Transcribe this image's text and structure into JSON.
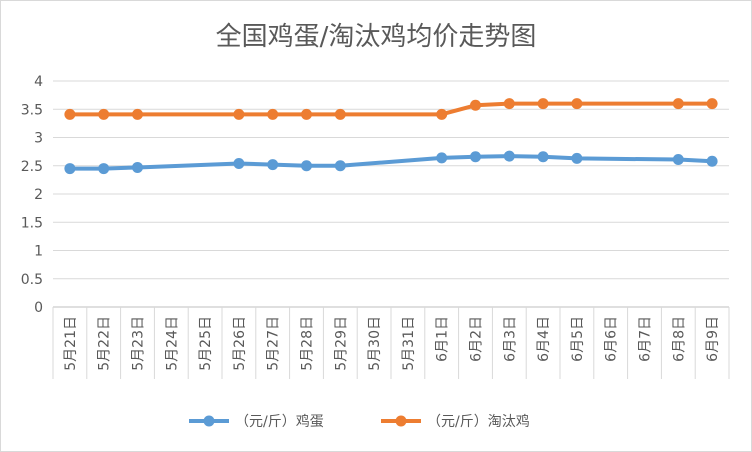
{
  "chart_data": {
    "type": "line",
    "title": "全国鸡蛋/淘汰鸡均价走势图",
    "xlabel": "",
    "ylabel": "",
    "ylim": [
      0,
      4
    ],
    "yticks": [
      0,
      0.5,
      1,
      1.5,
      2,
      2.5,
      3,
      3.5,
      4
    ],
    "ytick_labels": [
      "0",
      "0.5",
      "1",
      "1.5",
      "2",
      "2.5",
      "3",
      "3.5",
      "4"
    ],
    "grid": true,
    "legend_position": "bottom",
    "categories": [
      "5月21日",
      "5月22日",
      "5月23日",
      "5月24日",
      "5月25日",
      "5月26日",
      "5月27日",
      "5月28日",
      "5月29日",
      "5月30日",
      "5月31日",
      "6月1日",
      "6月2日",
      "6月3日",
      "6月4日",
      "6月5日",
      "6月6日",
      "6月7日",
      "6月8日",
      "6月9日"
    ],
    "series": [
      {
        "name": "（元/斤）鸡蛋",
        "color": "#5B9BD5",
        "values": [
          2.45,
          2.45,
          2.47,
          null,
          null,
          2.54,
          2.52,
          2.5,
          2.5,
          null,
          null,
          2.64,
          2.66,
          2.67,
          2.66,
          2.63,
          null,
          null,
          2.61,
          2.58
        ]
      },
      {
        "name": "（元/斤）淘汰鸡",
        "color": "#ED7D31",
        "values": [
          3.41,
          3.41,
          3.41,
          null,
          null,
          3.41,
          3.41,
          3.41,
          3.41,
          null,
          null,
          3.41,
          3.57,
          3.6,
          3.6,
          3.6,
          null,
          null,
          3.6,
          3.6
        ]
      }
    ]
  }
}
